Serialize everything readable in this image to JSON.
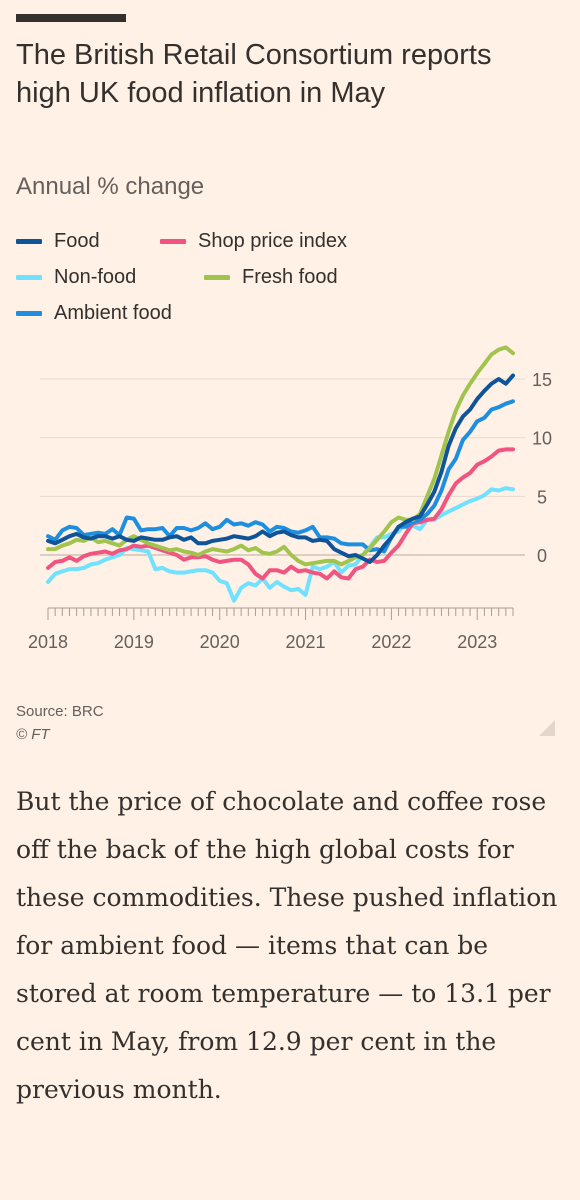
{
  "chart_data": {
    "type": "line",
    "title": "The British Retail Consortium reports high UK food inflation in May",
    "subtitle": "Annual % change",
    "x_axis": {
      "ticks": [
        "2018",
        "2019",
        "2020",
        "2021",
        "2022",
        "2023"
      ],
      "start": "2018-01",
      "end": "2023-05"
    },
    "y_axis": {
      "ticks": [
        15,
        10,
        5,
        0
      ],
      "position": "right",
      "ylim": [
        -5,
        18
      ]
    },
    "legend": [
      {
        "name": "Food",
        "color": "#0F5499"
      },
      {
        "name": "Shop price index",
        "color": "#F15480"
      },
      {
        "name": "Non-food",
        "color": "#70E1FF"
      },
      {
        "name": "Fresh food",
        "color": "#A0C44E"
      },
      {
        "name": "Ambient food",
        "color": "#1E8FE0"
      }
    ],
    "series": [
      {
        "name": "Food",
        "color": "#0F5499",
        "values": [
          1.2,
          1.0,
          1.3,
          1.6,
          1.8,
          1.5,
          1.4,
          1.6,
          1.6,
          1.4,
          1.6,
          1.3,
          1.2,
          1.5,
          1.4,
          1.3,
          1.3,
          1.5,
          1.6,
          1.3,
          1.5,
          1.0,
          1.0,
          1.2,
          1.3,
          1.4,
          1.6,
          1.5,
          1.4,
          1.6,
          2.0,
          1.6,
          1.9,
          2.0,
          1.7,
          1.5,
          1.5,
          1.2,
          1.3,
          1.2,
          0.5,
          0.2,
          -0.1,
          0.0,
          -0.3,
          -0.6,
          0.0,
          0.8,
          1.5,
          2.4,
          2.8,
          3.1,
          3.3,
          4.3,
          5.4,
          7.1,
          9.3,
          10.8,
          11.8,
          12.4,
          13.3,
          14.0,
          14.6,
          15.0,
          14.6,
          15.3
        ]
      },
      {
        "name": "Shop price index",
        "color": "#F15480",
        "values": [
          -1.1,
          -0.6,
          -0.5,
          -0.2,
          -0.5,
          -0.1,
          0.1,
          0.2,
          0.3,
          0.1,
          0.4,
          0.5,
          0.8,
          0.7,
          0.8,
          0.6,
          0.4,
          0.2,
          0.0,
          -0.4,
          -0.2,
          -0.2,
          -0.1,
          -0.4,
          -0.6,
          -0.5,
          -0.4,
          -0.4,
          -0.8,
          -1.6,
          -2.0,
          -1.3,
          -1.3,
          -1.5,
          -1.0,
          -1.4,
          -1.3,
          -1.5,
          -1.6,
          -2.0,
          -1.4,
          -1.9,
          -2.0,
          -1.2,
          -1.0,
          -0.4,
          -0.6,
          -0.5,
          0.2,
          0.8,
          1.8,
          2.7,
          2.8,
          3.0,
          3.1,
          3.9,
          5.1,
          6.1,
          6.6,
          7.0,
          7.7,
          8.0,
          8.4,
          8.9,
          9.0,
          9.0
        ]
      },
      {
        "name": "Non-food",
        "color": "#70E1FF",
        "values": [
          -2.3,
          -1.6,
          -1.4,
          -1.2,
          -1.2,
          -1.1,
          -0.8,
          -0.7,
          -0.4,
          -0.2,
          0.0,
          0.6,
          0.5,
          0.4,
          0.3,
          -1.2,
          -1.1,
          -1.4,
          -1.5,
          -1.5,
          -1.4,
          -1.3,
          -1.3,
          -1.5,
          -2.2,
          -2.4,
          -3.9,
          -2.8,
          -2.4,
          -2.6,
          -2.0,
          -2.8,
          -2.3,
          -2.7,
          -3.0,
          -2.9,
          -3.4,
          -1.0,
          -1.2,
          -1.0,
          -0.6,
          -1.5,
          -0.9,
          -0.8,
          0.0,
          0.7,
          1.5,
          1.5,
          1.8,
          2.0,
          2.7,
          2.5,
          2.2,
          3.0,
          3.0,
          3.4,
          3.7,
          4.0,
          4.3,
          4.6,
          4.8,
          5.1,
          5.6,
          5.5,
          5.7,
          5.6
        ]
      },
      {
        "name": "Fresh food",
        "color": "#A0C44E",
        "values": [
          0.5,
          0.5,
          0.8,
          1.0,
          1.3,
          1.2,
          1.5,
          1.1,
          1.2,
          1.0,
          0.8,
          1.3,
          1.6,
          1.3,
          1.0,
          0.8,
          0.6,
          0.4,
          0.5,
          0.3,
          0.2,
          0.0,
          0.3,
          0.5,
          0.4,
          0.3,
          0.5,
          0.8,
          0.4,
          0.6,
          0.2,
          0.1,
          0.3,
          0.7,
          0.0,
          -0.5,
          -0.8,
          -0.7,
          -0.6,
          -0.5,
          -0.5,
          -0.8,
          -0.5,
          -0.2,
          0.0,
          0.6,
          1.3,
          2.0,
          2.8,
          3.2,
          3.0,
          3.0,
          3.5,
          5.0,
          6.5,
          8.5,
          10.5,
          12.3,
          13.6,
          14.6,
          15.5,
          16.3,
          17.1,
          17.5,
          17.7,
          17.2
        ]
      },
      {
        "name": "Ambient food",
        "color": "#1E8FE0",
        "values": [
          1.6,
          1.3,
          2.1,
          2.4,
          2.3,
          1.7,
          1.8,
          1.9,
          1.8,
          2.2,
          1.7,
          3.2,
          3.1,
          2.1,
          2.2,
          2.2,
          2.3,
          1.6,
          2.3,
          2.3,
          2.1,
          2.3,
          2.7,
          2.2,
          2.4,
          3.0,
          2.6,
          2.7,
          2.5,
          2.8,
          2.6,
          2.0,
          2.4,
          2.3,
          2.0,
          1.9,
          2.1,
          2.4,
          1.5,
          1.5,
          1.4,
          1.0,
          0.9,
          0.9,
          0.9,
          0.4,
          0.5,
          0.3,
          1.5,
          2.4,
          2.4,
          2.8,
          3.0,
          3.5,
          4.2,
          5.5,
          7.3,
          8.2,
          9.8,
          10.5,
          11.4,
          11.7,
          12.4,
          12.6,
          12.9,
          13.1
        ]
      }
    ],
    "grid": true
  },
  "footer": {
    "source": "Source: BRC",
    "copyright": "© FT"
  },
  "article": {
    "paragraph": "But the price of chocolate and coffee rose off the back of the high global costs for these commodities. These pushed inflation for ambient food — items that can be stored at room temperature — to 13.1 per cent in May, from 12.9 per cent in the previous month."
  },
  "colors": {
    "background": "#FFF1E5",
    "grid": "#E6D9CE",
    "text": "#33302E",
    "muted": "#66605C"
  }
}
